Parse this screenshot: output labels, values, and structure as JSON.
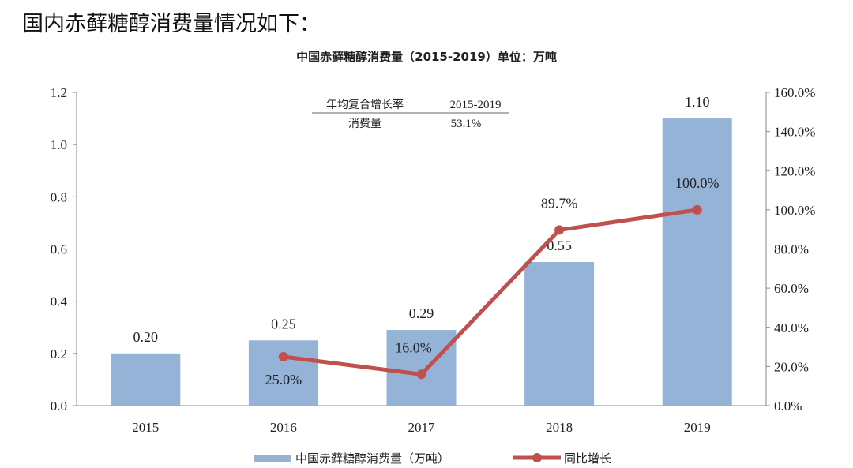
{
  "heading": "国内赤藓糖醇消费量情况如下：",
  "chart_data": {
    "type": "bar+line",
    "title": "中国赤藓糖醇消费量（2015-2019）单位：万吨",
    "categories": [
      "2015",
      "2016",
      "2017",
      "2018",
      "2019"
    ],
    "series": [
      {
        "name": "中国赤藓糖醇消费量（万吨）",
        "type": "bar",
        "axis": "left",
        "values": [
          0.2,
          0.25,
          0.29,
          0.55,
          1.1
        ],
        "labels": [
          "0.20",
          "0.25",
          "0.29",
          "0.55",
          "1.10"
        ],
        "color": "#95b3d7"
      },
      {
        "name": "同比增长",
        "type": "line",
        "axis": "right",
        "values": [
          null,
          25.0,
          16.0,
          89.7,
          100.0
        ],
        "labels": [
          "",
          "25.0%",
          "16.0%",
          "89.7%",
          "100.0%"
        ],
        "color": "#c0504d"
      }
    ],
    "y_left": {
      "range": [
        0,
        1.2
      ],
      "ticks": [
        "0.0",
        "0.2",
        "0.4",
        "0.6",
        "0.8",
        "1.0",
        "1.2"
      ]
    },
    "y_right": {
      "range": [
        0,
        160
      ],
      "ticks": [
        "0.0%",
        "20.0%",
        "40.0%",
        "60.0%",
        "80.0%",
        "100.0%",
        "120.0%",
        "140.0%",
        "160.0%"
      ]
    },
    "grid": false,
    "legend": "bottom",
    "annotation": {
      "header": [
        "年均复合增长率",
        "2015-2019"
      ],
      "row": [
        "消费量",
        "53.1%"
      ]
    }
  }
}
